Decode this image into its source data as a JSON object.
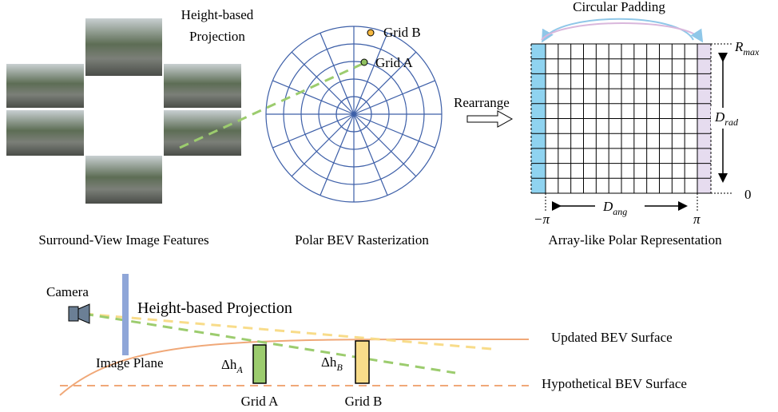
{
  "top": {
    "projection_label": [
      "Height-based",
      "Projection"
    ],
    "grid_b": "Grid B",
    "grid_a": "Grid A",
    "rearrange": "Rearrange",
    "circular_padding": "Circular Padding",
    "r_max": {
      "base": "R",
      "sub": "max"
    },
    "d_rad": {
      "base": "D",
      "sub": "rad"
    },
    "zero": "0",
    "neg_pi": "−π",
    "pi": "π",
    "d_ang": {
      "base": "D",
      "sub": "ang"
    },
    "captions": [
      "Surround-View Image Features",
      "Polar BEV Rasterization",
      "Array-like Polar Representation"
    ]
  },
  "bottom": {
    "camera": "Camera",
    "projection": "Height-based Projection",
    "image_plane": "Image Plane",
    "updated_surface": "Updated BEV Surface",
    "hypothetical_surface": "Hypothetical BEV Surface",
    "dh_a": {
      "base": "Δh",
      "sub": "A"
    },
    "dh_b": {
      "base": "Δh",
      "sub": "B"
    },
    "grid_a": "Grid A",
    "grid_b": "Grid B"
  }
}
